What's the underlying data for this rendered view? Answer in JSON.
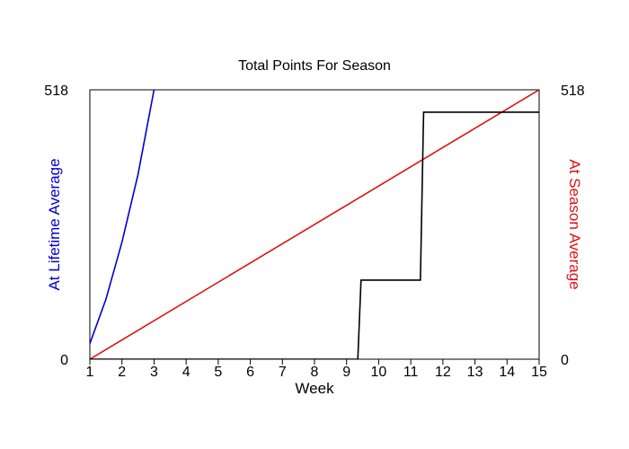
{
  "chart_data": {
    "type": "line",
    "title": "Total Points For Season",
    "xlabel": "Week",
    "ylabel_left": "At Lifetime Average",
    "ylabel_right": "At Season Average",
    "xlim": [
      1,
      15
    ],
    "ylim": [
      0,
      518
    ],
    "x_ticks": [
      "1",
      "2",
      "3",
      "4",
      "5",
      "6",
      "7",
      "8",
      "9",
      "10",
      "11",
      "12",
      "13",
      "14",
      "15"
    ],
    "y_ticks_left": [
      "0",
      "518"
    ],
    "y_ticks_right": [
      "0",
      "518"
    ],
    "grid": false,
    "series": [
      {
        "color": "#0000cc",
        "points": [
          [
            1,
            30
          ],
          [
            1.5,
            115
          ],
          [
            2,
            225
          ],
          [
            2.5,
            355
          ],
          [
            3,
            518
          ]
        ]
      },
      {
        "color": "#dd1111",
        "points": [
          [
            1,
            0
          ],
          [
            15,
            518
          ]
        ]
      },
      {
        "color": "#000000",
        "points": [
          [
            1,
            0
          ],
          [
            9.35,
            0
          ],
          [
            9.45,
            152
          ],
          [
            11.3,
            152
          ],
          [
            11.4,
            475
          ],
          [
            15,
            475
          ]
        ]
      }
    ]
  }
}
